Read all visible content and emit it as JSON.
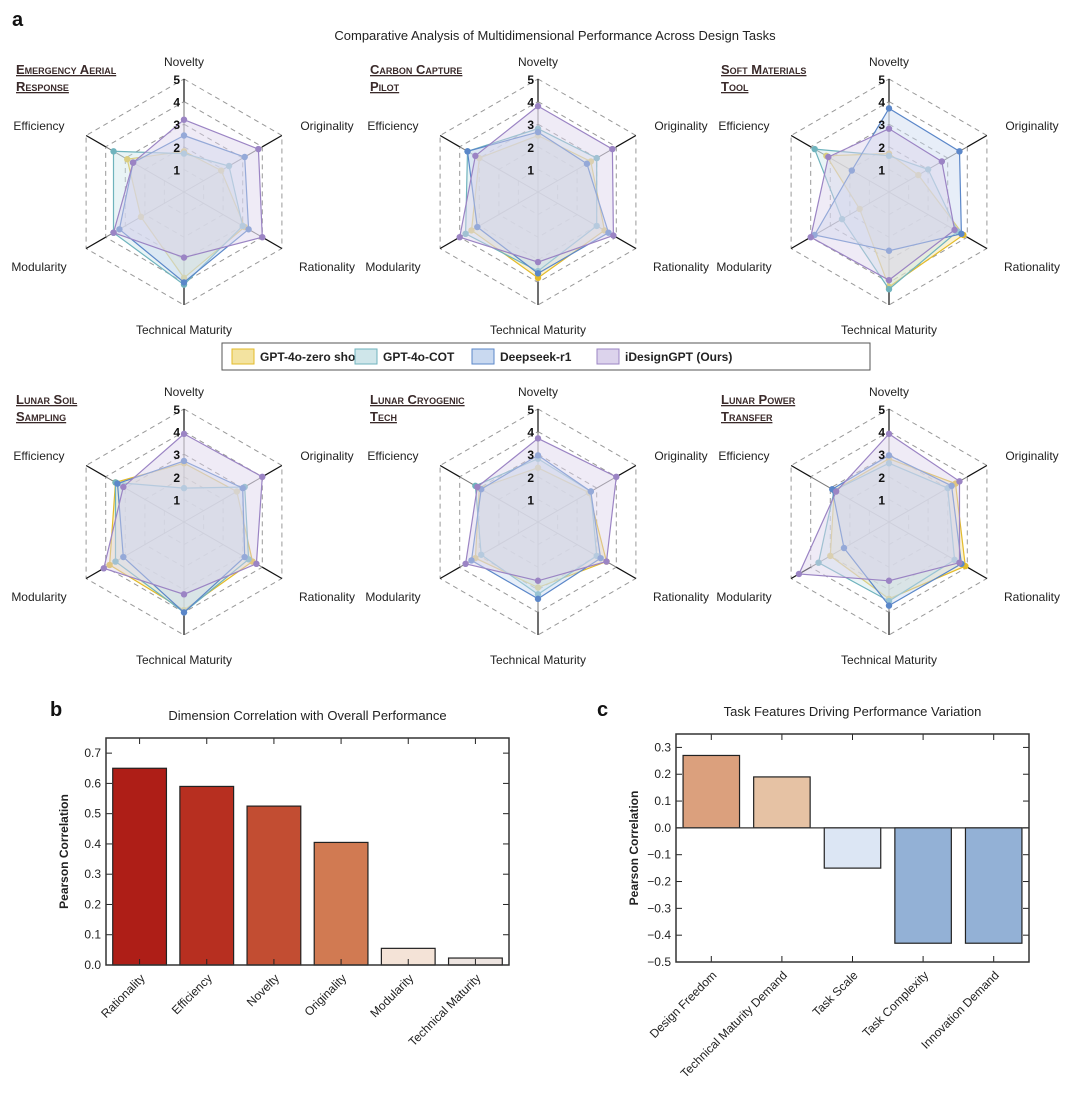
{
  "panel_labels": {
    "a": "a",
    "b": "b",
    "c": "c"
  },
  "legend": [
    {
      "name": "GPT-4o-zero shot",
      "stroke": "#e3bb2a",
      "fill": "#f3e3a0"
    },
    {
      "name": "GPT-4o-COT",
      "stroke": "#6fb3bd",
      "fill": "#cfe6ea"
    },
    {
      "name": "Deepseek-r1",
      "stroke": "#5b87c9",
      "fill": "#c9d9f0"
    },
    {
      "name": "iDesignGPT (Ours)",
      "stroke": "#9b84c4",
      "fill": "#dcd3ec"
    }
  ],
  "chart_data": [
    {
      "type": "radar",
      "title": "Comparative Analysis of Multidimensional Performance Across Design Tasks",
      "axes": [
        "Novelty",
        "Originality",
        "Rationality",
        "Technical Maturity",
        "Modularity",
        "Efficiency"
      ],
      "rlim": [
        0,
        5
      ],
      "ticks": [
        "1",
        "2",
        "3",
        "4",
        "5"
      ],
      "series_names": [
        "GPT-4o-zero shot",
        "GPT-4o-COT",
        "Deepseek-r1",
        "iDesignGPT (Ours)"
      ],
      "tasks": [
        {
          "title_lines": [
            "Emergency Aerial",
            "Response"
          ],
          "values": [
            [
              1.8,
              1.9,
              3.1,
              3.8,
              2.2,
              2.9
            ],
            [
              1.7,
              2.3,
              3.0,
              4.1,
              3.6,
              3.6
            ],
            [
              2.5,
              3.1,
              3.3,
              4.0,
              3.3,
              2.6
            ],
            [
              3.2,
              3.8,
              4.0,
              2.9,
              3.6,
              2.6
            ]
          ]
        },
        {
          "title_lines": [
            "Carbon Capture",
            "Pilot"
          ],
          "values": [
            [
              2.5,
              2.7,
              3.4,
              3.8,
              3.4,
              3.0
            ],
            [
              2.8,
              3.0,
              3.0,
              3.5,
              3.7,
              3.6
            ],
            [
              2.65,
              2.5,
              3.6,
              3.6,
              3.1,
              3.6
            ],
            [
              3.8,
              3.8,
              3.85,
              3.1,
              4.0,
              3.2
            ]
          ]
        },
        {
          "title_lines": [
            "Soft Materials",
            "Tool"
          ],
          "values": [
            [
              1.7,
              1.5,
              3.8,
              4.2,
              1.5,
              3.2
            ],
            [
              1.6,
              2.0,
              3.5,
              4.3,
              2.4,
              3.8
            ],
            [
              3.7,
              3.6,
              3.7,
              2.6,
              3.8,
              1.9
            ],
            [
              2.8,
              2.7,
              3.35,
              3.9,
              4.0,
              3.1
            ]
          ]
        },
        {
          "title_lines": [
            "Lunar Soil",
            "Sampling"
          ],
          "values": [
            [
              2.6,
              2.7,
              3.5,
              3.9,
              3.8,
              3.5
            ],
            [
              1.5,
              3.1,
              3.3,
              4.0,
              3.5,
              3.5
            ],
            [
              2.7,
              3.0,
              3.1,
              4.0,
              3.1,
              3.4
            ],
            [
              3.9,
              4.0,
              3.7,
              3.2,
              4.1,
              3.1
            ]
          ]
        },
        {
          "title_lines": [
            "Lunar Cryogenic",
            "Tech"
          ],
          "values": [
            [
              2.4,
              2.6,
              3.5,
              2.9,
              3.2,
              3.0
            ],
            [
              2.8,
              2.7,
              3.0,
              3.2,
              2.9,
              3.2
            ],
            [
              2.95,
              2.7,
              3.2,
              3.4,
              3.4,
              2.9
            ],
            [
              3.7,
              4.0,
              3.5,
              2.6,
              3.7,
              3.1
            ]
          ]
        },
        {
          "title_lines": [
            "Lunar Power",
            "Transfer"
          ],
          "values": [
            [
              2.8,
              3.4,
              3.9,
              3.4,
              3.0,
              2.8
            ],
            [
              2.6,
              3.0,
              3.35,
              3.5,
              3.6,
              2.8
            ],
            [
              2.95,
              3.2,
              3.7,
              3.7,
              2.3,
              2.9
            ],
            [
              3.9,
              3.6,
              3.6,
              2.6,
              4.6,
              2.7
            ]
          ]
        }
      ]
    },
    {
      "type": "bar",
      "title": "Dimension Correlation with Overall Performance",
      "categories": [
        "Rationality",
        "Efficiency",
        "Novelty",
        "Originality",
        "Modularity",
        "Technical Maturity"
      ],
      "values": [
        0.65,
        0.59,
        0.525,
        0.405,
        0.055,
        0.023
      ],
      "colors": [
        "#ae1e17",
        "#b72f20",
        "#c24d32",
        "#d17a52",
        "#f4e3d7",
        "#ede4e0"
      ],
      "xlabel": "",
      "ylabel": "Pearson Correlation",
      "ylim": [
        0,
        0.75
      ],
      "yticks": [
        "0.0",
        "0.1",
        "0.2",
        "0.3",
        "0.4",
        "0.5",
        "0.6",
        "0.7"
      ],
      "grid": false
    },
    {
      "type": "bar",
      "title": "Task Features Driving Performance Variation",
      "categories": [
        "Design Freedom",
        "Technical Maturity Demand",
        "Task Scale",
        "Task Complexity",
        "Innovation Demand"
      ],
      "values": [
        0.27,
        0.19,
        -0.15,
        -0.43,
        -0.43
      ],
      "colors": [
        "#dba07d",
        "#e6c2a4",
        "#dce6f4",
        "#93b1d6",
        "#93b1d6"
      ],
      "xlabel": "",
      "ylabel": "Pearson Correlation",
      "ylim": [
        -0.5,
        0.35
      ],
      "yticks": [
        "−0.5",
        "−0.4",
        "−0.3",
        "−0.2",
        "−0.1",
        "0.0",
        "0.1",
        "0.2",
        "0.3"
      ],
      "grid": false
    }
  ]
}
